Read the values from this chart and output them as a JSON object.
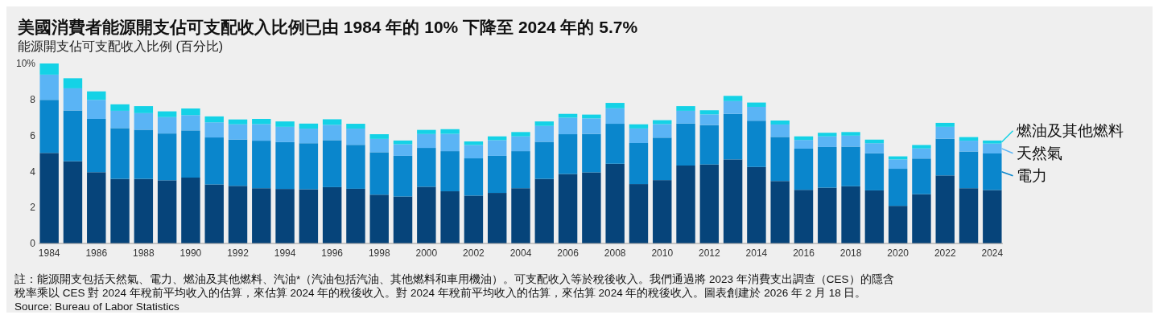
{
  "chart_data": {
    "type": "bar",
    "stacked": true,
    "title": "美國消費者能源開支佔可支配收入比例已由 1984 年的 10% 下降至 2024 年的 5.7%",
    "subtitle": "能源開支佔可支配收入比例 (百分比)",
    "categories": [
      "1984",
      null,
      "1986",
      null,
      "1988",
      null,
      "1990",
      null,
      "1992",
      null,
      "1994",
      null,
      "1996",
      null,
      "1998",
      null,
      "2000",
      null,
      "2002",
      null,
      "2004",
      null,
      "2006",
      null,
      "2008",
      null,
      "2010",
      null,
      "2012",
      null,
      "2014",
      null,
      "2016",
      null,
      "2018",
      null,
      "2020",
      null,
      "2022",
      null,
      "2024"
    ],
    "series": [
      {
        "color": "#06447a",
        "values": [
          5.03,
          4.57,
          3.96,
          3.59,
          3.59,
          3.51,
          3.66,
          3.28,
          3.2,
          3.07,
          3.03,
          3.01,
          3.13,
          3.04,
          2.71,
          2.61,
          3.15,
          2.9,
          2.66,
          2.81,
          3.07,
          3.59,
          3.86,
          3.95,
          4.43,
          3.3,
          3.52,
          4.33,
          4.39,
          4.67,
          4.25,
          3.47,
          2.98,
          3.1,
          3.18,
          2.95,
          2.09,
          2.74,
          3.78,
          3.07,
          2.97
        ]
      },
      {
        "name": "電力",
        "color": "#0a86cc",
        "values": [
          2.95,
          2.82,
          2.96,
          2.82,
          2.73,
          2.6,
          2.62,
          2.61,
          2.57,
          2.64,
          2.6,
          2.56,
          2.61,
          2.44,
          2.36,
          2.26,
          2.16,
          2.23,
          2.07,
          2.06,
          2.06,
          2.06,
          2.21,
          2.14,
          2.22,
          2.28,
          2.36,
          2.33,
          2.19,
          2.53,
          2.57,
          2.45,
          2.29,
          2.26,
          2.2,
          2.06,
          2.06,
          1.98,
          2.04,
          2.04,
          2.03
        ]
      },
      {
        "name": "天然氣",
        "color": "#5ab4f5",
        "values": [
          1.4,
          1.23,
          1.06,
          0.96,
          0.92,
          0.91,
          0.85,
          0.84,
          0.85,
          0.92,
          0.85,
          0.81,
          0.85,
          0.9,
          0.74,
          0.64,
          0.77,
          0.96,
          0.74,
          0.87,
          0.82,
          0.88,
          0.92,
          0.86,
          0.86,
          0.81,
          0.75,
          0.71,
          0.59,
          0.71,
          0.77,
          0.69,
          0.48,
          0.59,
          0.61,
          0.56,
          0.52,
          0.56,
          0.66,
          0.6,
          0.55
        ]
      },
      {
        "name": "燃油及其他燃料",
        "color": "#14d2e6",
        "values": [
          0.62,
          0.56,
          0.47,
          0.36,
          0.39,
          0.32,
          0.37,
          0.33,
          0.27,
          0.29,
          0.3,
          0.28,
          0.31,
          0.27,
          0.26,
          0.21,
          0.23,
          0.26,
          0.2,
          0.21,
          0.24,
          0.25,
          0.21,
          0.21,
          0.3,
          0.23,
          0.22,
          0.26,
          0.23,
          0.29,
          0.24,
          0.22,
          0.2,
          0.2,
          0.2,
          0.2,
          0.17,
          0.19,
          0.22,
          0.2,
          0.17
        ]
      }
    ],
    "ylim": [
      0,
      10
    ],
    "yticks": [
      0,
      2,
      4,
      6,
      8,
      {
        "value": 10,
        "label": "10%"
      }
    ],
    "legend": "right",
    "annotations": [
      "註：能源開支包括天然氣、電力、燃油及其他燃料、汽油*（汽油包括汽油、其他燃料和車用機油）。可支配收入等於稅後收入。我們通過將 2023 年消費支出調查（CES）的隱含稅率乘以 CES 對 2024 年稅前平均收入的估算，來估算 2024 年的稅後收入。對 2024 年稅前平均收入的估算，來估算 2024 年的稅後收入。圖表創建於 2026 年 2 月 18 日。",
      "Source: Bureau of Labor Statistics"
    ]
  }
}
